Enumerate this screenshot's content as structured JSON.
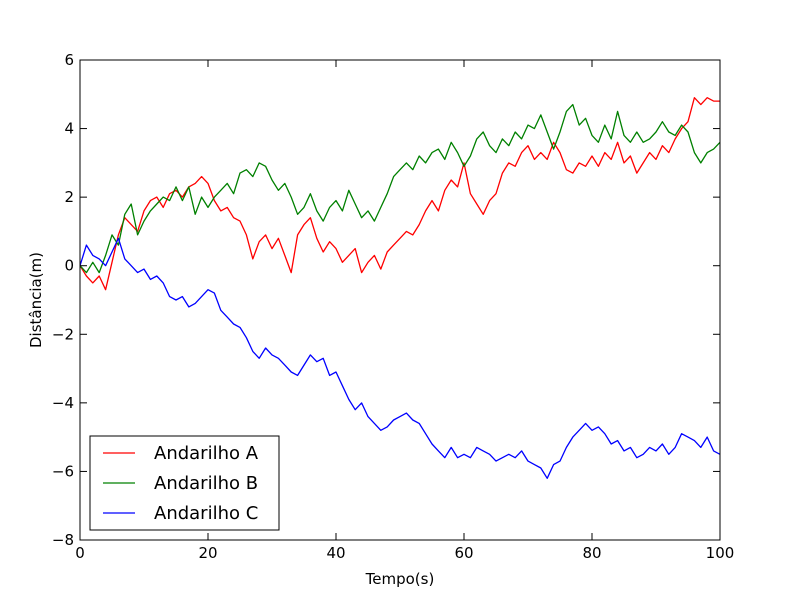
{
  "chart_data": {
    "type": "line",
    "title": "",
    "xlabel": "Tempo(s)",
    "ylabel": "Distância(m)",
    "xlim": [
      0,
      100
    ],
    "ylim": [
      -8,
      6
    ],
    "xticks": [
      0,
      20,
      40,
      60,
      80,
      100
    ],
    "yticks": [
      -8,
      -6,
      -4,
      -2,
      0,
      2,
      4,
      6
    ],
    "grid": false,
    "legend_position": "lower-left",
    "series": [
      {
        "name": "Andarilho A",
        "color": "#ff0000",
        "x": [
          0,
          1,
          2,
          3,
          4,
          5,
          6,
          7,
          8,
          9,
          10,
          11,
          12,
          13,
          14,
          15,
          16,
          17,
          18,
          19,
          20,
          21,
          22,
          23,
          24,
          25,
          26,
          27,
          28,
          29,
          30,
          31,
          32,
          33,
          34,
          35,
          36,
          37,
          38,
          39,
          40,
          41,
          42,
          43,
          44,
          45,
          46,
          47,
          48,
          49,
          50,
          51,
          52,
          53,
          54,
          55,
          56,
          57,
          58,
          59,
          60,
          61,
          62,
          63,
          64,
          65,
          66,
          67,
          68,
          69,
          70,
          71,
          72,
          73,
          74,
          75,
          76,
          77,
          78,
          79,
          80,
          81,
          82,
          83,
          84,
          85,
          86,
          87,
          88,
          89,
          90,
          91,
          92,
          93,
          94,
          95,
          96,
          97,
          98,
          99,
          100
        ],
        "y": [
          0.0,
          -0.3,
          -0.5,
          -0.3,
          -0.7,
          0.1,
          0.9,
          1.4,
          1.2,
          1.0,
          1.6,
          1.9,
          2.0,
          1.7,
          2.1,
          2.2,
          2.0,
          2.3,
          2.4,
          2.6,
          2.4,
          1.9,
          1.6,
          1.7,
          1.4,
          1.3,
          0.9,
          0.2,
          0.7,
          0.9,
          0.5,
          0.8,
          0.3,
          -0.2,
          0.9,
          1.2,
          1.4,
          0.8,
          0.4,
          0.7,
          0.5,
          0.1,
          0.3,
          0.5,
          -0.2,
          0.1,
          0.3,
          -0.1,
          0.4,
          0.6,
          0.8,
          1.0,
          0.9,
          1.2,
          1.6,
          1.9,
          1.6,
          2.2,
          2.5,
          2.3,
          3.0,
          2.1,
          1.8,
          1.5,
          1.9,
          2.1,
          2.7,
          3.0,
          2.9,
          3.3,
          3.5,
          3.1,
          3.3,
          3.1,
          3.6,
          3.3,
          2.8,
          2.7,
          3.0,
          2.9,
          3.2,
          2.9,
          3.3,
          3.1,
          3.6,
          3.0,
          3.2,
          2.7,
          3.0,
          3.3,
          3.1,
          3.5,
          3.3,
          3.7,
          4.0,
          4.2,
          4.9,
          4.7,
          4.9,
          4.8,
          4.8
        ]
      },
      {
        "name": "Andarilho B",
        "color": "#008000",
        "x": [
          0,
          1,
          2,
          3,
          4,
          5,
          6,
          7,
          8,
          9,
          10,
          11,
          12,
          13,
          14,
          15,
          16,
          17,
          18,
          19,
          20,
          21,
          22,
          23,
          24,
          25,
          26,
          27,
          28,
          29,
          30,
          31,
          32,
          33,
          34,
          35,
          36,
          37,
          38,
          39,
          40,
          41,
          42,
          43,
          44,
          45,
          46,
          47,
          48,
          49,
          50,
          51,
          52,
          53,
          54,
          55,
          56,
          57,
          58,
          59,
          60,
          61,
          62,
          63,
          64,
          65,
          66,
          67,
          68,
          69,
          70,
          71,
          72,
          73,
          74,
          75,
          76,
          77,
          78,
          79,
          80,
          81,
          82,
          83,
          84,
          85,
          86,
          87,
          88,
          89,
          90,
          91,
          92,
          93,
          94,
          95,
          96,
          97,
          98,
          99,
          100
        ],
        "y": [
          0.0,
          -0.2,
          0.1,
          -0.2,
          0.3,
          0.9,
          0.6,
          1.5,
          1.8,
          0.9,
          1.3,
          1.6,
          1.8,
          2.0,
          1.9,
          2.3,
          1.9,
          2.3,
          1.5,
          2.0,
          1.7,
          2.0,
          2.2,
          2.4,
          2.1,
          2.7,
          2.8,
          2.6,
          3.0,
          2.9,
          2.5,
          2.2,
          2.4,
          2.0,
          1.5,
          1.7,
          2.1,
          1.6,
          1.3,
          1.7,
          1.9,
          1.6,
          2.2,
          1.8,
          1.4,
          1.6,
          1.3,
          1.7,
          2.1,
          2.6,
          2.8,
          3.0,
          2.8,
          3.2,
          3.0,
          3.3,
          3.4,
          3.1,
          3.6,
          3.3,
          2.9,
          3.2,
          3.7,
          3.9,
          3.5,
          3.3,
          3.7,
          3.5,
          3.9,
          3.7,
          4.1,
          4.0,
          4.4,
          3.9,
          3.4,
          3.9,
          4.5,
          4.7,
          4.1,
          4.3,
          3.8,
          3.6,
          4.1,
          3.7,
          4.5,
          3.8,
          3.6,
          3.9,
          3.6,
          3.7,
          3.9,
          4.2,
          3.9,
          3.8,
          4.1,
          3.9,
          3.3,
          3.0,
          3.3,
          3.4,
          3.6
        ]
      },
      {
        "name": "Andarilho C",
        "color": "#0000ff",
        "x": [
          0,
          1,
          2,
          3,
          4,
          5,
          6,
          7,
          8,
          9,
          10,
          11,
          12,
          13,
          14,
          15,
          16,
          17,
          18,
          19,
          20,
          21,
          22,
          23,
          24,
          25,
          26,
          27,
          28,
          29,
          30,
          31,
          32,
          33,
          34,
          35,
          36,
          37,
          38,
          39,
          40,
          41,
          42,
          43,
          44,
          45,
          46,
          47,
          48,
          49,
          50,
          51,
          52,
          53,
          54,
          55,
          56,
          57,
          58,
          59,
          60,
          61,
          62,
          63,
          64,
          65,
          66,
          67,
          68,
          69,
          70,
          71,
          72,
          73,
          74,
          75,
          76,
          77,
          78,
          79,
          80,
          81,
          82,
          83,
          84,
          85,
          86,
          87,
          88,
          89,
          90,
          91,
          92,
          93,
          94,
          95,
          96,
          97,
          98,
          99,
          100
        ],
        "y": [
          0.0,
          0.6,
          0.3,
          0.2,
          0.0,
          0.4,
          0.8,
          0.2,
          0.0,
          -0.2,
          -0.1,
          -0.4,
          -0.3,
          -0.5,
          -0.9,
          -1.0,
          -0.9,
          -1.2,
          -1.1,
          -0.9,
          -0.7,
          -0.8,
          -1.3,
          -1.5,
          -1.7,
          -1.8,
          -2.1,
          -2.5,
          -2.7,
          -2.4,
          -2.6,
          -2.7,
          -2.9,
          -3.1,
          -3.2,
          -2.9,
          -2.6,
          -2.8,
          -2.7,
          -3.2,
          -3.1,
          -3.5,
          -3.9,
          -4.2,
          -4.0,
          -4.4,
          -4.6,
          -4.8,
          -4.7,
          -4.5,
          -4.4,
          -4.3,
          -4.5,
          -4.6,
          -4.9,
          -5.2,
          -5.4,
          -5.6,
          -5.3,
          -5.6,
          -5.5,
          -5.6,
          -5.3,
          -5.4,
          -5.5,
          -5.7,
          -5.6,
          -5.5,
          -5.6,
          -5.4,
          -5.7,
          -5.8,
          -5.9,
          -6.2,
          -5.8,
          -5.7,
          -5.3,
          -5.0,
          -4.8,
          -4.6,
          -4.8,
          -4.7,
          -4.9,
          -5.2,
          -5.1,
          -5.4,
          -5.3,
          -5.6,
          -5.5,
          -5.3,
          -5.4,
          -5.2,
          -5.5,
          -5.3,
          -4.9,
          -5.0,
          -5.1,
          -5.3,
          -5.0,
          -5.4,
          -5.5
        ]
      }
    ]
  }
}
